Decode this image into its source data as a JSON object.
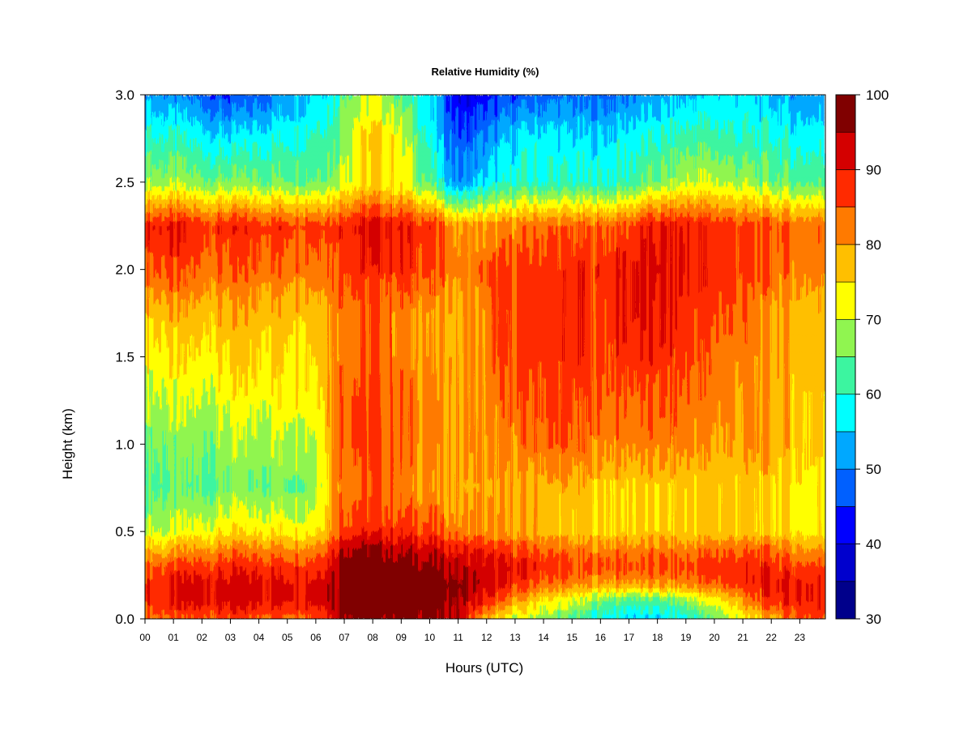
{
  "chart_data": {
    "type": "heatmap",
    "title": "Relative Humidity (%)",
    "xlabel": "Hours (UTC)",
    "ylabel": "Height (km)",
    "x_ticks": [
      "00",
      "01",
      "02",
      "03",
      "04",
      "05",
      "06",
      "07",
      "08",
      "09",
      "10",
      "11",
      "12",
      "13",
      "14",
      "15",
      "16",
      "17",
      "18",
      "19",
      "20",
      "21",
      "22",
      "23"
    ],
    "xlim": [
      0,
      23.9
    ],
    "y_ticks": [
      "0.0",
      "0.5",
      "1.0",
      "1.5",
      "2.0",
      "2.5",
      "3.0"
    ],
    "ylim": [
      0,
      3.0
    ],
    "colorbar": {
      "ticks": [
        "30",
        "40",
        "50",
        "60",
        "70",
        "80",
        "90",
        "100"
      ],
      "range": [
        30,
        100
      ],
      "levels": [
        30,
        35,
        40,
        45,
        50,
        55,
        60,
        65,
        70,
        75,
        80,
        85,
        90,
        95,
        100
      ],
      "colors": [
        "#00008b",
        "#0000cd",
        "#0000ff",
        "#0060ff",
        "#00a8ff",
        "#00ffff",
        "#3cf5a0",
        "#90f550",
        "#ffff00",
        "#ffbf00",
        "#ff7a00",
        "#ff2a00",
        "#d40000",
        "#800000"
      ]
    },
    "heights_km": [
      0.0,
      0.1,
      0.2,
      0.3,
      0.4,
      0.5,
      0.75,
      1.0,
      1.25,
      1.5,
      1.75,
      2.0,
      2.25,
      2.5,
      2.75,
      3.0
    ],
    "hours": [
      0,
      1,
      2,
      3,
      4,
      5,
      6,
      6.7,
      7,
      8,
      9,
      10,
      11,
      12,
      13,
      14,
      15,
      16,
      17,
      18,
      19,
      20,
      21,
      22,
      23,
      23.9
    ],
    "values_pct": [
      [
        84,
        84,
        85,
        86,
        85,
        85,
        86,
        92,
        97,
        97,
        97,
        96,
        92,
        78,
        70,
        68,
        63,
        58,
        55,
        55,
        58,
        65,
        72,
        78,
        85,
        85
      ],
      [
        88,
        90,
        92,
        92,
        92,
        92,
        92,
        96,
        100,
        100,
        100,
        100,
        96,
        88,
        80,
        74,
        70,
        66,
        63,
        63,
        67,
        72,
        80,
        88,
        90,
        90
      ],
      [
        88,
        90,
        92,
        92,
        92,
        92,
        92,
        96,
        100,
        100,
        100,
        100,
        97,
        92,
        88,
        84,
        82,
        80,
        80,
        80,
        82,
        85,
        88,
        90,
        90,
        90
      ],
      [
        85,
        86,
        87,
        88,
        88,
        88,
        88,
        94,
        99,
        99,
        98,
        96,
        94,
        92,
        90,
        88,
        86,
        86,
        86,
        86,
        86,
        88,
        88,
        88,
        86,
        86
      ],
      [
        78,
        78,
        80,
        82,
        82,
        82,
        82,
        90,
        96,
        96,
        94,
        92,
        90,
        88,
        86,
        84,
        82,
        82,
        82,
        82,
        82,
        84,
        84,
        84,
        80,
        80
      ],
      [
        70,
        70,
        72,
        74,
        74,
        74,
        74,
        84,
        88,
        88,
        88,
        86,
        82,
        80,
        78,
        78,
        76,
        76,
        76,
        76,
        76,
        76,
        76,
        76,
        74,
        74
      ],
      [
        64,
        64,
        64,
        66,
        66,
        66,
        68,
        82,
        84,
        84,
        82,
        80,
        78,
        78,
        78,
        78,
        78,
        76,
        76,
        76,
        76,
        76,
        76,
        76,
        74,
        74
      ],
      [
        66,
        66,
        66,
        68,
        68,
        70,
        70,
        84,
        86,
        86,
        84,
        82,
        80,
        80,
        82,
        84,
        84,
        82,
        82,
        82,
        82,
        80,
        80,
        80,
        76,
        76
      ],
      [
        70,
        70,
        70,
        72,
        72,
        74,
        74,
        84,
        86,
        86,
        84,
        82,
        80,
        82,
        84,
        86,
        86,
        84,
        84,
        84,
        84,
        82,
        80,
        80,
        76,
        76
      ],
      [
        74,
        74,
        74,
        76,
        76,
        76,
        76,
        82,
        84,
        84,
        82,
        80,
        78,
        82,
        86,
        88,
        88,
        86,
        88,
        88,
        86,
        84,
        82,
        80,
        78,
        78
      ],
      [
        78,
        78,
        78,
        78,
        78,
        78,
        78,
        82,
        84,
        84,
        82,
        80,
        78,
        82,
        86,
        88,
        88,
        86,
        90,
        90,
        88,
        86,
        84,
        80,
        78,
        78
      ],
      [
        86,
        86,
        84,
        84,
        84,
        84,
        84,
        86,
        88,
        88,
        88,
        86,
        82,
        84,
        86,
        88,
        88,
        88,
        90,
        92,
        90,
        88,
        86,
        84,
        82,
        82
      ],
      [
        90,
        90,
        88,
        88,
        88,
        88,
        88,
        88,
        90,
        92,
        90,
        88,
        80,
        80,
        82,
        84,
        84,
        84,
        86,
        90,
        90,
        88,
        86,
        86,
        84,
        84
      ],
      [
        68,
        68,
        66,
        66,
        66,
        66,
        66,
        68,
        72,
        74,
        72,
        64,
        50,
        56,
        60,
        60,
        60,
        60,
        62,
        66,
        70,
        70,
        68,
        66,
        64,
        64
      ],
      [
        60,
        60,
        58,
        56,
        58,
        60,
        62,
        64,
        70,
        76,
        72,
        58,
        46,
        50,
        56,
        58,
        56,
        56,
        58,
        60,
        62,
        62,
        60,
        60,
        58,
        58
      ],
      [
        52,
        50,
        48,
        44,
        48,
        52,
        56,
        60,
        66,
        70,
        64,
        56,
        40,
        42,
        46,
        48,
        48,
        48,
        50,
        52,
        54,
        56,
        56,
        54,
        52,
        52
      ]
    ]
  }
}
